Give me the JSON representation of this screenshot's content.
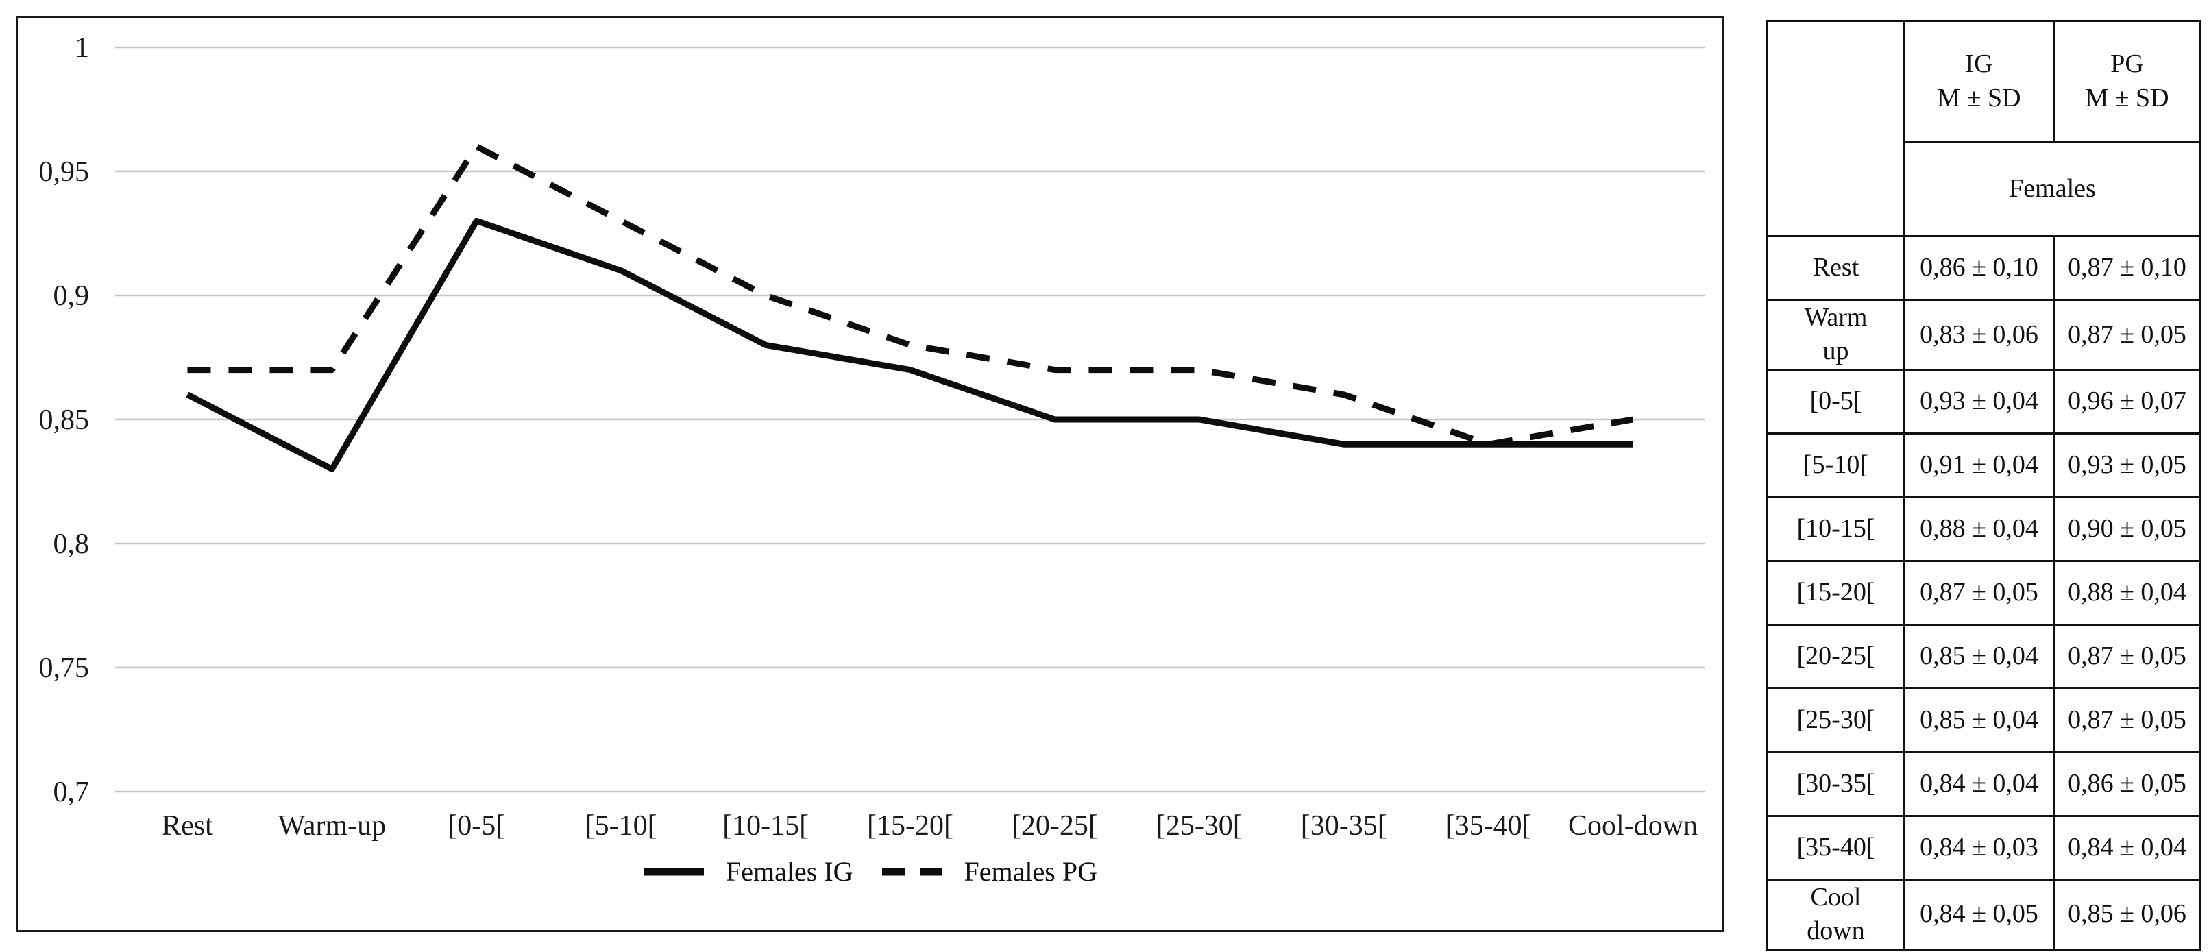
{
  "colors": {
    "background": "#ffffff",
    "text": "#1a1a1a",
    "grid": "#c6c6c6",
    "series_line": "#0d0d0d",
    "panel_border": "#1a1a1a",
    "table_border": "#111111"
  },
  "chart_data": {
    "type": "line",
    "title": "",
    "xlabel": "",
    "ylabel": "",
    "categories": [
      "Rest",
      "Warm-up",
      "[0-5[",
      "[5-10[",
      "[10-15[",
      "[15-20[",
      "[20-25[",
      "[25-30[",
      "[30-35[",
      "[35-40[",
      "Cool-down"
    ],
    "series": [
      {
        "name": "Females IG",
        "line_style": "solid",
        "values": [
          0.86,
          0.83,
          0.93,
          0.91,
          0.88,
          0.87,
          0.85,
          0.85,
          0.84,
          0.84,
          0.84
        ]
      },
      {
        "name": "Females PG",
        "line_style": "dashed",
        "values": [
          0.87,
          0.87,
          0.96,
          0.93,
          0.9,
          0.88,
          0.87,
          0.87,
          0.86,
          0.84,
          0.85
        ]
      }
    ],
    "ylim": [
      0.7,
      1.0
    ],
    "yticks": [
      {
        "value": 1.0,
        "label": "1"
      },
      {
        "value": 0.95,
        "label": "0,95"
      },
      {
        "value": 0.9,
        "label": "0,9"
      },
      {
        "value": 0.85,
        "label": "0,85"
      },
      {
        "value": 0.8,
        "label": "0,8"
      },
      {
        "value": 0.75,
        "label": "0,75"
      },
      {
        "value": 0.7,
        "label": "0,7"
      }
    ],
    "grid": true,
    "legend_position": "bottom-center"
  },
  "table": {
    "header": {
      "ig": "IG",
      "pg": "PG",
      "msd": "M ± SD",
      "group": "Females"
    },
    "rows": [
      {
        "label": "Rest",
        "ig": "0,86 ± 0,10",
        "pg": "0,87 ± 0,10"
      },
      {
        "label": "Warm\nup",
        "ig": "0,83 ± 0,06",
        "pg": "0,87 ± 0,05"
      },
      {
        "label": "[0-5[",
        "ig": "0,93 ± 0,04",
        "pg": "0,96 ± 0,07"
      },
      {
        "label": "[5-10[",
        "ig": "0,91 ± 0,04",
        "pg": "0,93 ± 0,05"
      },
      {
        "label": "[10-15[",
        "ig": "0,88 ± 0,04",
        "pg": "0,90 ± 0,05"
      },
      {
        "label": "[15-20[",
        "ig": "0,87 ± 0,05",
        "pg": "0,88 ± 0,04"
      },
      {
        "label": "[20-25[",
        "ig": "0,85 ± 0,04",
        "pg": "0,87 ± 0,05"
      },
      {
        "label": "[25-30[",
        "ig": "0,85 ± 0,04",
        "pg": "0,87 ± 0,05"
      },
      {
        "label": "[30-35[",
        "ig": "0,84 ± 0,04",
        "pg": "0,86 ± 0,05"
      },
      {
        "label": "[35-40[",
        "ig": "0,84 ± 0,03",
        "pg": "0,84 ± 0,04"
      },
      {
        "label": "Cool\ndown",
        "ig": "0,84 ± 0,05",
        "pg": "0,85 ± 0,06"
      }
    ]
  }
}
